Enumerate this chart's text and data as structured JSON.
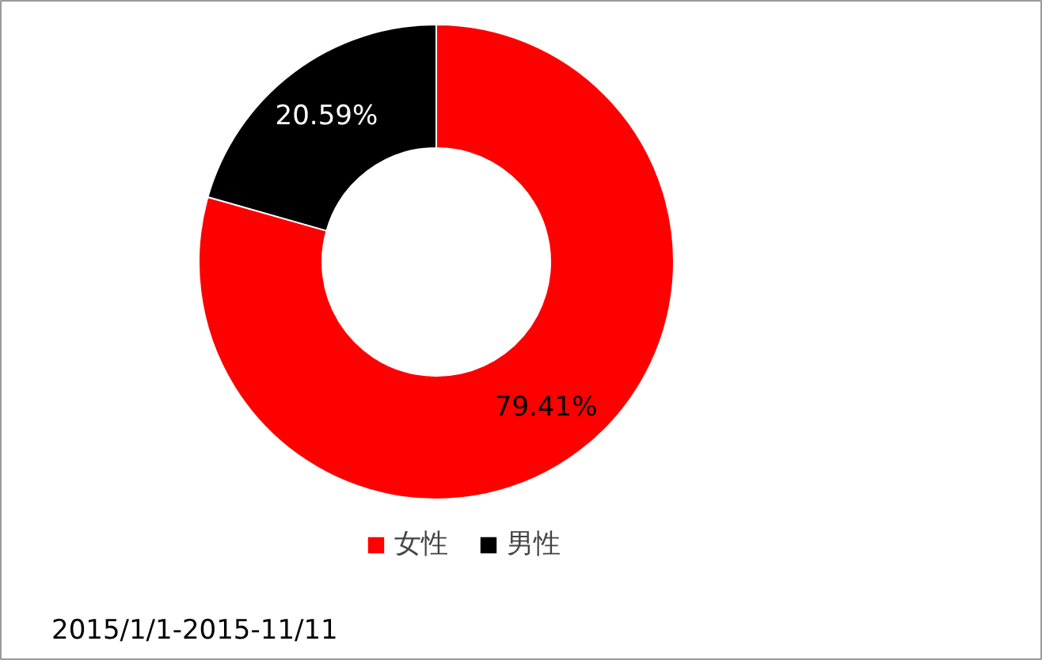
{
  "chart_data": {
    "type": "donut",
    "categories": [
      "女性",
      "男性"
    ],
    "values": [
      79.41,
      20.59
    ],
    "colors": [
      "#ff0000",
      "#000000"
    ],
    "value_labels": [
      "79.41%",
      "20.59%"
    ],
    "legend": "bottom",
    "annotations": [
      "2015/1/1-2015-11/11"
    ]
  }
}
